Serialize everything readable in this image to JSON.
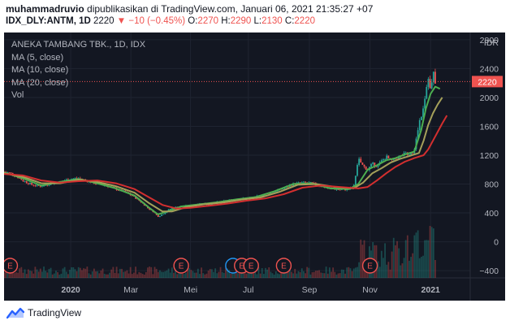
{
  "header": {
    "user": "muhammadruvio",
    "published": "dipublikasikan di TradingView.com, Januari 06, 2021 21:35:27 +07",
    "symbol": "IDX_DLY:ANTM, 1D",
    "last": "2220",
    "change": "−10 (−0.45%)",
    "o_label": "O:",
    "o": "2270",
    "h_label": "H:",
    "h": "2290",
    "l_label": "L:",
    "l": "2130",
    "c_label": "C:",
    "c": "2220"
  },
  "legend": {
    "title": "ANEKA TAMBANG TBK., 1D, IDX",
    "ma5": "MA (5, close)",
    "ma10": "MA (10, close)",
    "ma20": "MA (20, close)",
    "vol": "Vol"
  },
  "colors": {
    "background": "#131722",
    "up": "#26a69a",
    "down": "#ef5350",
    "ma5": "#4caf50",
    "ma10": "#a5a05a",
    "ma20": "#d32f2f",
    "price_tag": "#ef5350"
  },
  "chart_data": {
    "type": "line",
    "currency_label": "IDR",
    "price_tag": "2220",
    "ylim": [
      -500,
      2900
    ],
    "yticks": [
      -400,
      0,
      400,
      800,
      1200,
      1600,
      2000,
      2400,
      2800
    ],
    "xticks": [
      {
        "label": "2020",
        "t": 0.143
      },
      {
        "label": "Mar",
        "t": 0.272
      },
      {
        "label": "Mei",
        "t": 0.4
      },
      {
        "label": "Jul",
        "t": 0.524
      },
      {
        "label": "Sep",
        "t": 0.655
      },
      {
        "label": "Nov",
        "t": 0.785
      },
      {
        "label": "2021",
        "t": 0.915
      }
    ],
    "earnings_markers": [
      0.013,
      0.38,
      0.51,
      0.53,
      0.6,
      0.785
    ],
    "dividend_markers": [
      0.505
    ],
    "series": [
      {
        "name": "Price",
        "t": [
          0.0,
          0.02,
          0.04,
          0.06,
          0.08,
          0.1,
          0.12,
          0.14,
          0.16,
          0.18,
          0.2,
          0.22,
          0.24,
          0.26,
          0.28,
          0.3,
          0.31,
          0.32,
          0.33,
          0.34,
          0.35,
          0.36,
          0.38,
          0.4,
          0.42,
          0.44,
          0.46,
          0.48,
          0.5,
          0.52,
          0.54,
          0.56,
          0.58,
          0.6,
          0.62,
          0.64,
          0.66,
          0.68,
          0.7,
          0.72,
          0.74,
          0.75,
          0.76,
          0.77,
          0.78,
          0.79,
          0.8,
          0.81,
          0.82,
          0.83,
          0.84,
          0.85,
          0.86,
          0.87,
          0.88,
          0.885,
          0.89,
          0.895,
          0.9,
          0.905,
          0.91,
          0.915,
          0.92,
          0.925
        ],
        "values": [
          970,
          940,
          850,
          790,
          770,
          810,
          830,
          870,
          880,
          840,
          800,
          780,
          730,
          690,
          620,
          520,
          460,
          420,
          350,
          380,
          430,
          470,
          490,
          500,
          530,
          520,
          550,
          570,
          590,
          600,
          620,
          660,
          700,
          740,
          800,
          820,
          810,
          770,
          740,
          720,
          730,
          760,
          1150,
          1050,
          1000,
          1080,
          1050,
          1120,
          1180,
          1120,
          1150,
          1180,
          1220,
          1230,
          1250,
          1450,
          1650,
          1750,
          1900,
          2100,
          2300,
          2050,
          2350,
          2220
        ]
      },
      {
        "name": "MA (5, close)",
        "t": [
          0.0,
          0.04,
          0.08,
          0.12,
          0.16,
          0.2,
          0.24,
          0.28,
          0.31,
          0.33,
          0.35,
          0.38,
          0.42,
          0.46,
          0.5,
          0.54,
          0.58,
          0.62,
          0.66,
          0.7,
          0.74,
          0.76,
          0.78,
          0.8,
          0.82,
          0.84,
          0.86,
          0.88,
          0.895,
          0.905,
          0.915,
          0.925,
          0.935
        ],
        "values": [
          960,
          880,
          780,
          830,
          870,
          810,
          740,
          640,
          480,
          380,
          420,
          490,
          520,
          550,
          590,
          620,
          700,
          800,
          810,
          740,
          730,
          800,
          1000,
          1060,
          1130,
          1160,
          1210,
          1250,
          1550,
          1850,
          2050,
          2150,
          2120
        ]
      },
      {
        "name": "MA (10, close)",
        "t": [
          0.0,
          0.04,
          0.08,
          0.12,
          0.16,
          0.2,
          0.24,
          0.28,
          0.31,
          0.34,
          0.36,
          0.39,
          0.43,
          0.47,
          0.51,
          0.55,
          0.59,
          0.63,
          0.67,
          0.71,
          0.75,
          0.77,
          0.79,
          0.81,
          0.83,
          0.85,
          0.87,
          0.89,
          0.9,
          0.91,
          0.92,
          0.93,
          0.94
        ],
        "values": [
          950,
          900,
          810,
          810,
          860,
          830,
          770,
          680,
          540,
          420,
          420,
          480,
          520,
          545,
          585,
          615,
          690,
          790,
          800,
          760,
          740,
          820,
          950,
          1020,
          1100,
          1150,
          1190,
          1230,
          1400,
          1620,
          1780,
          1900,
          2000
        ]
      },
      {
        "name": "MA (20, close)",
        "t": [
          0.0,
          0.04,
          0.08,
          0.12,
          0.16,
          0.2,
          0.24,
          0.28,
          0.31,
          0.34,
          0.37,
          0.4,
          0.44,
          0.48,
          0.52,
          0.56,
          0.6,
          0.64,
          0.68,
          0.72,
          0.76,
          0.78,
          0.8,
          0.82,
          0.84,
          0.86,
          0.88,
          0.9,
          0.91,
          0.92,
          0.93,
          0.94,
          0.95
        ],
        "values": [
          940,
          920,
          850,
          820,
          840,
          850,
          810,
          730,
          620,
          510,
          460,
          470,
          500,
          530,
          570,
          600,
          660,
          750,
          780,
          760,
          740,
          760,
          850,
          950,
          1040,
          1110,
          1160,
          1200,
          1280,
          1400,
          1520,
          1640,
          1750
        ]
      }
    ]
  },
  "footer": {
    "brand": "TradingView"
  }
}
